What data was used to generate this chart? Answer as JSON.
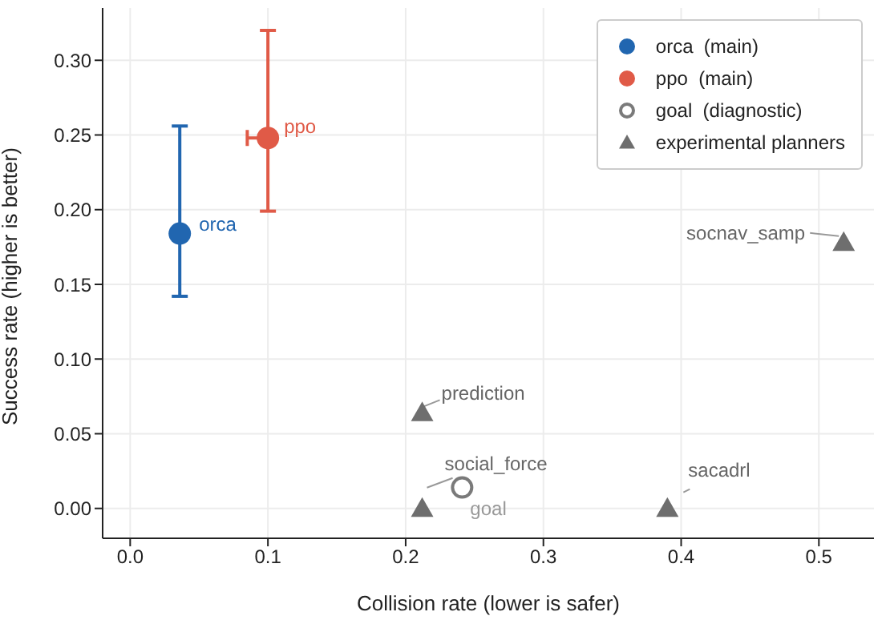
{
  "chart_data": {
    "type": "scatter",
    "xlabel": "Collision rate (lower is safer)",
    "ylabel": "Success rate (higher is better)",
    "xlim": [
      -0.02,
      0.54
    ],
    "xticks": [
      {
        "value": 0,
        "label": "0.0"
      },
      0.1,
      0.2,
      0.3,
      0.4,
      0.5
    ],
    "ylim": [
      -0.02,
      0.335
    ],
    "yticks": [
      {
        "value": 0,
        "label": "0.00"
      },
      {
        "value": 0.05,
        "label": "0.05"
      },
      {
        "value": 0.1,
        "label": "0.10"
      },
      {
        "value": 0.15,
        "label": "0.15"
      },
      {
        "value": 0.2,
        "label": "0.20"
      },
      {
        "value": 0.25,
        "label": "0.25"
      },
      {
        "value": 0.3,
        "label": "0.30"
      }
    ],
    "grid": true,
    "legend": "top right",
    "series": [
      {
        "name": "orca  (main)",
        "color": "#2166b0",
        "marker": "circle",
        "x": [
          0.036
        ],
        "values": [
          0.184
        ],
        "errors": [
          [
            0.142,
            0.256
          ]
        ]
      },
      {
        "name": "ppo  (main)",
        "color": "#e05a47",
        "marker": "circle",
        "x": [
          0.1
        ],
        "values": [
          0.248
        ],
        "errors": [
          [
            0.199,
            0.32
          ]
        ],
        "xerrors": [
          [
            0.085,
            0.1
          ]
        ]
      },
      {
        "name": "goal  (diagnostic)",
        "color": "#7a7a7a",
        "marker": "circle",
        "x": [
          0.241
        ],
        "values": [
          0.014
        ]
      },
      {
        "name": "experimental planners",
        "color": "#6e6e6e",
        "marker": "triangle",
        "x": [
          0.212,
          0.212,
          0.39,
          0.518
        ],
        "values": [
          0.064,
          0,
          0,
          0.178
        ]
      }
    ],
    "annotations": [
      {
        "text": "orca",
        "x": 0.036,
        "y": 0.184
      },
      {
        "text": "ppo",
        "x": 0.1,
        "y": 0.248
      },
      {
        "text": "goal",
        "x": 0.241,
        "y": 0.014
      },
      {
        "text": "prediction",
        "x": 0.212,
        "y": 0.064
      },
      {
        "text": "social_force",
        "x": 0.212,
        "y": 0
      },
      {
        "text": "sacadrl",
        "x": 0.39,
        "y": 0
      },
      {
        "text": "socnav_samp",
        "x": 0.518,
        "y": 0.178
      }
    ]
  }
}
